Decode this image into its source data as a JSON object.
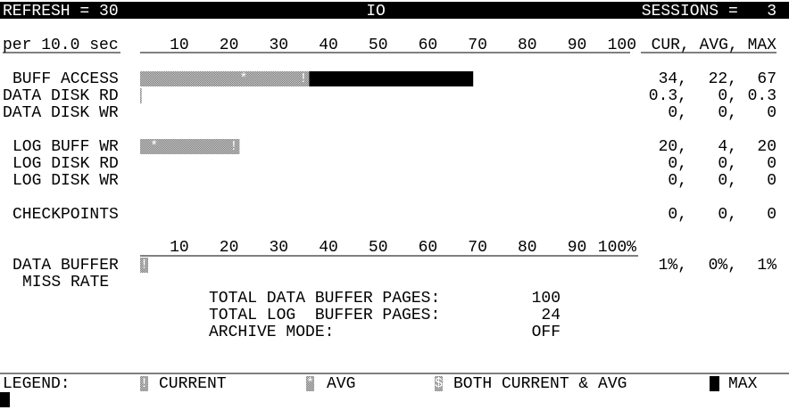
{
  "header": {
    "refresh": "REFRESH = 30",
    "title": "IO",
    "sessions": "SESSIONS =   3"
  },
  "scale": {
    "caption": "per 10.0 sec",
    "ticks": [
      "10",
      "20",
      "30",
      "40",
      "50",
      "60",
      "70",
      "80",
      "90",
      "100"
    ],
    "columns": "CUR, AVG, MAX"
  },
  "groups": [
    [
      {
        "label": "BUFF ACCESS",
        "cur": "34,",
        "avg": "22,",
        "max": "67"
      },
      {
        "label": "DATA DISK RD",
        "cur": "0.3,",
        "avg": "0,",
        "max": "0.3"
      },
      {
        "label": "DATA DISK WR",
        "cur": "0,",
        "avg": "0,",
        "max": "0"
      }
    ],
    [
      {
        "label": "LOG BUFF WR",
        "cur": "20,",
        "avg": "4,",
        "max": "20"
      },
      {
        "label": "LOG DISK RD",
        "cur": "0,",
        "avg": "0,",
        "max": "0"
      },
      {
        "label": "LOG DISK WR",
        "cur": "0,",
        "avg": "0,",
        "max": "0"
      }
    ],
    [
      {
        "label": "CHECKPOINTS",
        "cur": "0,",
        "avg": "0,",
        "max": "0"
      }
    ]
  ],
  "rate_scale": {
    "ticks": [
      "10",
      "20",
      "30",
      "40",
      "50",
      "60",
      "70",
      "80",
      "90",
      "100%"
    ]
  },
  "rate_row": {
    "label": [
      "DATA BUFFER",
      "MISS RATE"
    ],
    "cur": "1%,",
    "avg": "0%,",
    "max": "1%"
  },
  "totals": [
    {
      "label": "TOTAL DATA BUFFER PAGES:",
      "value": "100"
    },
    {
      "label": "TOTAL LOG  BUFFER PAGES:",
      "value": "24"
    },
    {
      "label": "ARCHIVE MODE:",
      "value": "OFF"
    }
  ],
  "legend": {
    "title": "LEGEND:",
    "items": [
      {
        "symbol": "!",
        "text": "CURRENT"
      },
      {
        "symbol": "*",
        "text": "AVG"
      },
      {
        "symbol": "$",
        "text": "BOTH CURRENT & AVG"
      },
      {
        "text": "MAX"
      }
    ]
  }
}
